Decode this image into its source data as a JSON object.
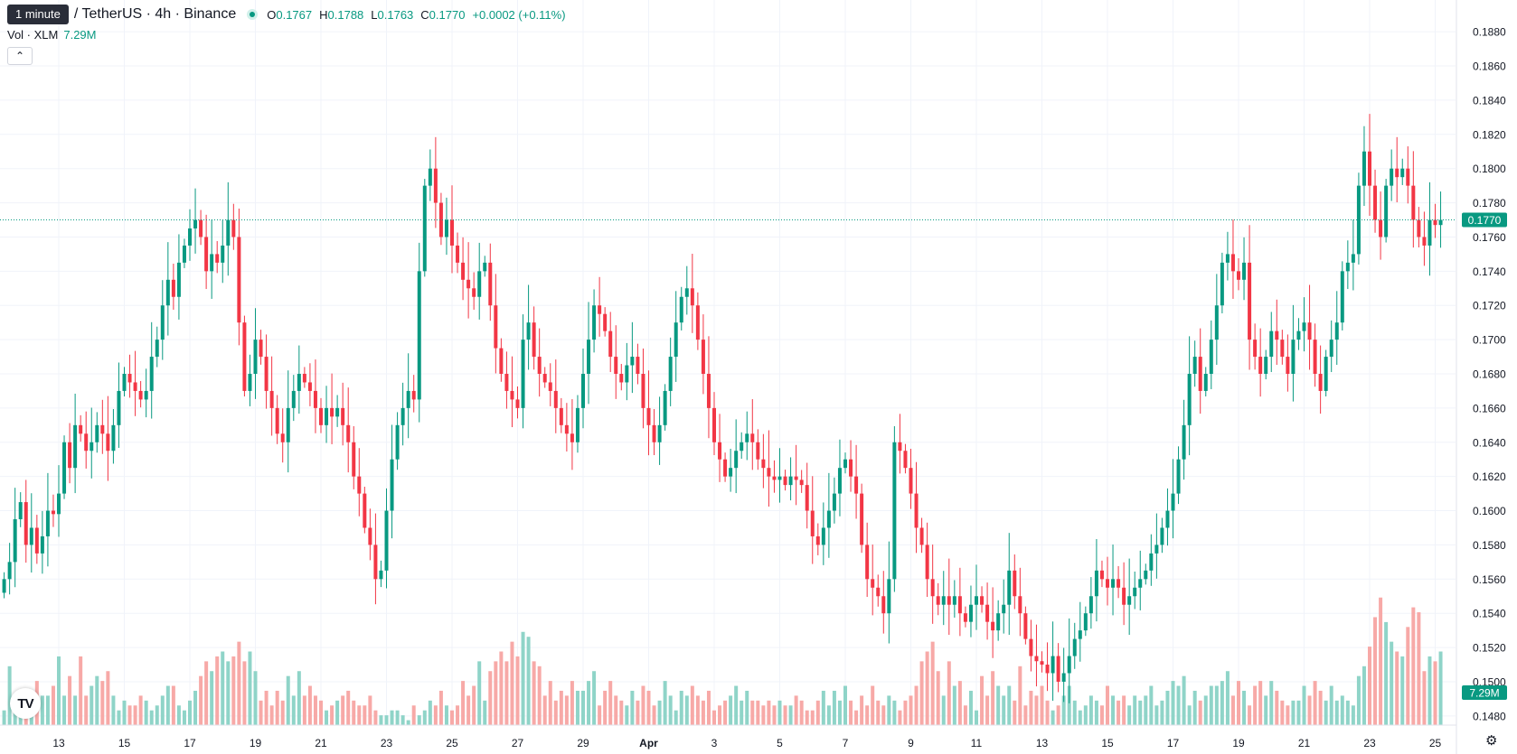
{
  "legend": {
    "tooltip": "1 minute",
    "symbol": "/ TetherUS · 4h · Binance",
    "open_label": "O",
    "open": "0.1767",
    "high_label": "H",
    "high": "0.1788",
    "low_label": "L",
    "low": "0.1763",
    "close_label": "C",
    "close": "0.1770",
    "change": "+0.0002 (+0.11%)"
  },
  "volume": {
    "label": "Vol · XLM",
    "value": "7.29M"
  },
  "price_axis": {
    "ticks": [
      "0.1880",
      "0.1860",
      "0.1840",
      "0.1820",
      "0.1800",
      "0.1780",
      "0.1760",
      "0.1740",
      "0.1720",
      "0.1700",
      "0.1680",
      "0.1660",
      "0.1640",
      "0.1620",
      "0.1600",
      "0.1580",
      "0.1560",
      "0.1540",
      "0.1520",
      "0.1500",
      "0.1480"
    ],
    "last_price": "0.1770",
    "volume_badge": "7.29M"
  },
  "time_axis": {
    "labels": [
      "13",
      "15",
      "17",
      "19",
      "21",
      "23",
      "25",
      "27",
      "29",
      "Apr",
      "3",
      "5",
      "7",
      "9",
      "11",
      "13",
      "15",
      "17",
      "19",
      "21",
      "23",
      "25"
    ]
  },
  "colors": {
    "up": "#089981",
    "down": "#F23645",
    "up_volume": "#8fd4c8",
    "down_volume": "#f7a9a7",
    "grid": "#f0f3fa",
    "axis_text": "#131722"
  },
  "icons": {
    "collapse": "chevron-up-icon",
    "logo": "tradingview-logo",
    "settings": "gear-icon"
  },
  "collapse_glyph": "⌃",
  "logo_text": "TV",
  "settings_glyph": "⚙",
  "chart_data": {
    "type": "candlestick",
    "symbol": "XLM / TetherUS",
    "interval": "4h",
    "exchange": "Binance",
    "ylim": [
      0.1472,
      0.1888
    ],
    "grid": true,
    "last_price": 0.177,
    "anchors": [
      {
        "label": "13",
        "time": 0
      },
      {
        "label": "15",
        "time": 12
      },
      {
        "label": "17",
        "time": 24
      },
      {
        "label": "19",
        "time": 36
      },
      {
        "label": "21",
        "time": 48
      },
      {
        "label": "23",
        "time": 60
      },
      {
        "label": "25",
        "time": 72
      },
      {
        "label": "27",
        "time": 84
      },
      {
        "label": "29",
        "time": 96
      },
      {
        "label": "Apr",
        "time": 108
      },
      {
        "label": "3",
        "time": 120
      },
      {
        "label": "5",
        "time": 132
      },
      {
        "label": "7",
        "time": 144
      },
      {
        "label": "9",
        "time": 156
      },
      {
        "label": "11",
        "time": 168
      },
      {
        "label": "13",
        "time": 180
      },
      {
        "label": "15",
        "time": 192
      },
      {
        "label": "17",
        "time": 204
      },
      {
        "label": "19",
        "time": 216
      },
      {
        "label": "21",
        "time": 228
      },
      {
        "label": "23",
        "time": 240
      },
      {
        "label": "25",
        "time": 252
      }
    ],
    "first_candle_time": -10,
    "closes": [
      0.156,
      0.157,
      0.1595,
      0.1605,
      0.158,
      0.159,
      0.1575,
      0.1585,
      0.16,
      0.1598,
      0.161,
      0.164,
      0.1625,
      0.165,
      0.1645,
      0.1635,
      0.164,
      0.165,
      0.1645,
      0.1635,
      0.165,
      0.167,
      0.168,
      0.1675,
      0.167,
      0.1665,
      0.167,
      0.169,
      0.17,
      0.172,
      0.1735,
      0.1725,
      0.1745,
      0.1755,
      0.1765,
      0.177,
      0.176,
      0.174,
      0.175,
      0.1745,
      0.1755,
      0.177,
      0.176,
      0.171,
      0.167,
      0.168,
      0.17,
      0.169,
      0.167,
      0.166,
      0.1645,
      0.164,
      0.166,
      0.167,
      0.168,
      0.1675,
      0.167,
      0.166,
      0.165,
      0.166,
      0.1655,
      0.166,
      0.165,
      0.164,
      0.162,
      0.161,
      0.159,
      0.158,
      0.156,
      0.1565,
      0.16,
      0.163,
      0.165,
      0.166,
      0.167,
      0.1665,
      0.174,
      0.179,
      0.18,
      0.178,
      0.176,
      0.177,
      0.1755,
      0.1745,
      0.1735,
      0.173,
      0.1725,
      0.174,
      0.1745,
      0.172,
      0.1695,
      0.168,
      0.167,
      0.1665,
      0.166,
      0.17,
      0.171,
      0.169,
      0.168,
      0.1675,
      0.167,
      0.166,
      0.165,
      0.1645,
      0.164,
      0.166,
      0.168,
      0.17,
      0.172,
      0.1715,
      0.1705,
      0.169,
      0.168,
      0.1675,
      0.1685,
      0.169,
      0.168,
      0.166,
      0.165,
      0.164,
      0.165,
      0.167,
      0.169,
      0.171,
      0.1725,
      0.173,
      0.172,
      0.17,
      0.168,
      0.166,
      0.164,
      0.163,
      0.162,
      0.1625,
      0.1635,
      0.164,
      0.1645,
      0.164,
      0.163,
      0.1625,
      0.162,
      0.1618,
      0.162,
      0.1615,
      0.162,
      0.1618,
      0.1615,
      0.16,
      0.1585,
      0.158,
      0.159,
      0.16,
      0.161,
      0.1625,
      0.163,
      0.162,
      0.161,
      0.158,
      0.156,
      0.1555,
      0.155,
      0.154,
      0.156,
      0.164,
      0.1635,
      0.1625,
      0.161,
      0.159,
      0.158,
      0.156,
      0.155,
      0.1545,
      0.155,
      0.1545,
      0.155,
      0.154,
      0.1535,
      0.1545,
      0.155,
      0.1545,
      0.1535,
      0.153,
      0.154,
      0.1545,
      0.1565,
      0.155,
      0.154,
      0.1525,
      0.1515,
      0.1512,
      0.151,
      0.1505,
      0.1515,
      0.15,
      0.1505,
      0.1515,
      0.1525,
      0.153,
      0.154,
      0.155,
      0.1565,
      0.156,
      0.1555,
      0.156,
      0.1555,
      0.1545,
      0.155,
      0.1555,
      0.156,
      0.1565,
      0.1575,
      0.158,
      0.159,
      0.16,
      0.161,
      0.163,
      0.165,
      0.168,
      0.169,
      0.167,
      0.168,
      0.17,
      0.172,
      0.1745,
      0.175,
      0.174,
      0.1735,
      0.1745,
      0.17,
      0.169,
      0.168,
      0.169,
      0.1705,
      0.17,
      0.169,
      0.168,
      0.17,
      0.1705,
      0.171,
      0.17,
      0.168,
      0.167,
      0.169,
      0.17,
      0.171,
      0.174,
      0.1745,
      0.175,
      0.179,
      0.181,
      0.179,
      0.177,
      0.176,
      0.179,
      0.18,
      0.1795,
      0.18,
      0.179,
      0.177,
      0.176,
      0.1755,
      0.177,
      0.1767,
      0.177
    ],
    "volume_scale": [
      0,
      30
    ],
    "volumes": [
      3,
      12,
      5,
      6,
      4,
      5,
      9,
      6,
      6,
      8,
      14,
      6,
      10,
      6,
      14,
      6,
      8,
      10,
      9,
      11,
      6,
      3,
      5,
      4,
      4,
      6,
      5,
      3,
      4,
      6,
      8,
      8,
      4,
      3,
      5,
      7,
      10,
      13,
      11,
      14,
      15,
      13,
      14,
      17,
      13,
      15,
      11,
      5,
      7,
      4,
      7,
      5,
      10,
      6,
      11,
      6,
      8,
      6,
      5,
      3,
      4,
      5,
      6,
      7,
      5,
      4,
      4,
      6,
      3,
      2,
      2,
      3,
      3,
      2,
      1,
      4,
      2,
      3,
      5,
      4,
      7,
      4,
      3,
      4,
      9,
      6,
      8,
      13,
      5,
      11,
      13,
      15,
      13,
      17,
      14,
      19,
      18,
      13,
      12,
      6,
      9,
      5,
      7,
      6,
      9,
      7,
      7,
      9,
      11,
      4,
      7,
      9,
      6,
      5,
      4,
      7,
      5,
      8,
      7,
      4,
      5,
      9,
      6,
      3,
      7,
      6,
      8,
      6,
      5,
      7,
      3,
      4,
      5,
      6,
      8,
      5,
      7,
      5,
      5,
      4,
      5,
      4,
      5,
      4,
      4,
      6,
      5,
      3,
      3,
      5,
      7,
      4,
      7,
      5,
      8,
      5,
      3,
      6,
      4,
      8,
      5,
      4,
      6,
      5,
      3,
      5,
      6,
      8,
      13,
      15,
      17,
      11,
      6,
      13,
      8,
      9,
      4,
      7,
      3,
      10,
      6,
      11,
      8,
      6,
      8,
      5,
      12,
      4,
      7,
      6,
      8,
      5,
      3,
      4,
      6,
      8,
      5,
      3,
      4,
      6,
      5,
      4,
      8,
      6,
      5,
      6,
      4,
      6,
      5,
      6,
      8,
      4,
      5,
      7,
      9,
      8,
      10,
      4,
      7,
      5,
      6,
      8,
      8,
      9,
      11,
      6,
      9,
      7,
      4,
      8,
      9,
      6,
      9,
      7,
      5,
      4,
      5,
      5,
      8,
      6,
      9,
      7,
      5,
      8,
      5,
      6,
      5,
      4,
      10,
      12,
      16,
      22,
      26,
      21,
      17,
      15,
      14,
      20,
      24,
      23,
      11,
      14,
      13,
      15,
      10,
      9,
      11,
      8,
      9,
      9,
      12,
      14,
      14,
      8,
      7,
      6,
      9,
      7,
      5,
      5,
      11
    ]
  }
}
